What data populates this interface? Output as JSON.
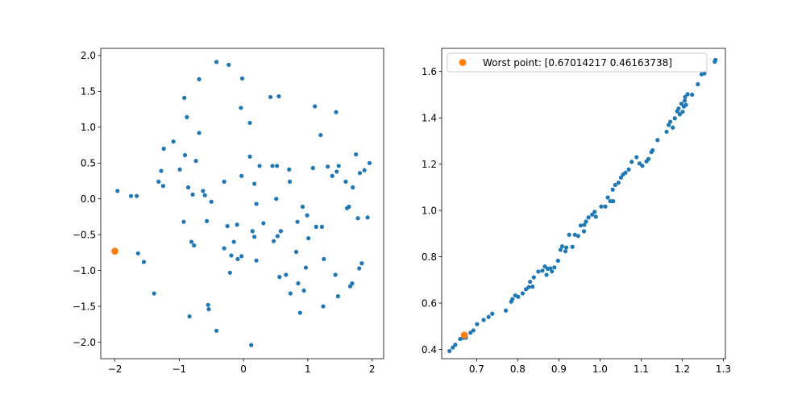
{
  "chart_data": [
    {
      "type": "scatter",
      "title": "",
      "xlabel": "",
      "ylabel": "",
      "xlim": [
        -2.22,
        2.18
      ],
      "ylim": [
        -2.23,
        2.1
      ],
      "xticks": [
        -2,
        -1,
        0,
        1,
        2
      ],
      "xtick_labels": [
        "−2",
        "−1",
        "0",
        "1",
        "2"
      ],
      "yticks": [
        -2.0,
        -1.5,
        -1.0,
        -0.5,
        0.0,
        0.5,
        1.0,
        1.5,
        2.0
      ],
      "ytick_labels": [
        "−2.0",
        "−1.5",
        "−1.0",
        "−0.5",
        "0.0",
        "0.5",
        "1.0",
        "1.5",
        "2.0"
      ],
      "grid": false,
      "series": [
        {
          "color": "#1f77b4",
          "marker_size": "small",
          "points": [
            [
              -1.96,
              0.11
            ],
            [
              -1.75,
              0.04
            ],
            [
              -1.66,
              0.04
            ],
            [
              -1.64,
              -0.76
            ],
            [
              -1.55,
              -0.88
            ],
            [
              -1.39,
              -1.32
            ],
            [
              -1.32,
              0.24
            ],
            [
              -1.28,
              0.39
            ],
            [
              -1.25,
              0.18
            ],
            [
              -1.24,
              0.7
            ],
            [
              -1.09,
              0.8
            ],
            [
              -0.99,
              0.41
            ],
            [
              -0.93,
              -0.32
            ],
            [
              -0.92,
              1.41
            ],
            [
              -0.91,
              0.61
            ],
            [
              -0.88,
              1.14
            ],
            [
              -0.86,
              0.16
            ],
            [
              -0.84,
              -1.64
            ],
            [
              -0.81,
              -0.6
            ],
            [
              -0.79,
              0.06
            ],
            [
              -0.77,
              -0.65
            ],
            [
              -0.74,
              0.53
            ],
            [
              -0.69,
              0.92
            ],
            [
              -0.69,
              1.67
            ],
            [
              -0.63,
              0.11
            ],
            [
              -0.6,
              0.05
            ],
            [
              -0.57,
              -0.31
            ],
            [
              -0.55,
              -1.48
            ],
            [
              -0.54,
              -1.54
            ],
            [
              -0.5,
              -0.04
            ],
            [
              -0.42,
              1.91
            ],
            [
              -0.42,
              -1.84
            ],
            [
              -0.3,
              0.24
            ],
            [
              -0.3,
              -0.69
            ],
            [
              -0.25,
              -0.38
            ],
            [
              -0.23,
              1.87
            ],
            [
              -0.21,
              -1.03
            ],
            [
              -0.19,
              -0.79
            ],
            [
              -0.15,
              -0.6
            ],
            [
              -0.1,
              -0.36
            ],
            [
              -0.09,
              -0.84
            ],
            [
              -0.04,
              1.27
            ],
            [
              -0.03,
              0.32
            ],
            [
              -0.03,
              -0.8
            ],
            [
              -0.02,
              1.68
            ],
            [
              0.1,
              0.59
            ],
            [
              0.1,
              1.06
            ],
            [
              0.12,
              -2.04
            ],
            [
              0.14,
              -0.45
            ],
            [
              0.17,
              0.21
            ],
            [
              0.17,
              -0.53
            ],
            [
              0.2,
              -0.07
            ],
            [
              0.2,
              -0.86
            ],
            [
              0.25,
              0.46
            ],
            [
              0.31,
              -0.34
            ],
            [
              0.42,
              1.42
            ],
            [
              0.45,
              0.46
            ],
            [
              0.47,
              -0.59
            ],
            [
              0.51,
              0.0
            ],
            [
              0.52,
              0.46
            ],
            [
              0.53,
              -0.52
            ],
            [
              0.55,
              1.43
            ],
            [
              0.56,
              -1.09
            ],
            [
              0.58,
              -0.45
            ],
            [
              0.66,
              -1.06
            ],
            [
              0.71,
              0.41
            ],
            [
              0.72,
              0.24
            ],
            [
              0.73,
              -1.32
            ],
            [
              0.82,
              -0.74
            ],
            [
              0.84,
              -0.32
            ],
            [
              0.85,
              -1.18
            ],
            [
              0.88,
              -1.59
            ],
            [
              0.92,
              -0.11
            ],
            [
              0.94,
              -1.28
            ],
            [
              0.97,
              -0.96
            ],
            [
              0.99,
              -0.23
            ],
            [
              1.01,
              -0.55
            ],
            [
              1.08,
              0.43
            ],
            [
              1.11,
              1.29
            ],
            [
              1.13,
              -0.39
            ],
            [
              1.2,
              0.89
            ],
            [
              1.22,
              -0.39
            ],
            [
              1.24,
              -1.5
            ],
            [
              1.25,
              -0.84
            ],
            [
              1.31,
              0.45
            ],
            [
              1.38,
              0.32
            ],
            [
              1.43,
              -1.06
            ],
            [
              1.44,
              1.21
            ],
            [
              1.45,
              0.38
            ],
            [
              1.47,
              -1.36
            ],
            [
              1.48,
              0.46
            ],
            [
              1.59,
              0.24
            ],
            [
              1.61,
              -0.13
            ],
            [
              1.64,
              -0.11
            ],
            [
              1.66,
              -1.22
            ],
            [
              1.69,
              -1.18
            ],
            [
              1.7,
              0.16
            ],
            [
              1.75,
              0.62
            ],
            [
              1.78,
              -0.27
            ],
            [
              1.8,
              -0.97
            ],
            [
              1.81,
              0.36
            ],
            [
              1.84,
              -0.9
            ],
            [
              1.88,
              0.4
            ],
            [
              1.93,
              -0.26
            ],
            [
              1.96,
              0.5
            ]
          ]
        },
        {
          "color": "#ff7f0e",
          "marker_size": "large",
          "points": [
            [
              -2.0,
              -0.73
            ]
          ]
        }
      ]
    },
    {
      "type": "scatter",
      "title": "",
      "xlabel": "",
      "ylabel": "",
      "xlim": [
        0.615,
        1.305
      ],
      "ylim": [
        0.36,
        1.7
      ],
      "xticks": [
        0.7,
        0.8,
        0.9,
        1.0,
        1.1,
        1.2,
        1.3
      ],
      "xtick_labels": [
        "0.7",
        "0.8",
        "0.9",
        "1.0",
        "1.1",
        "1.2",
        "1.3"
      ],
      "yticks": [
        0.4,
        0.6,
        0.8,
        1.0,
        1.2,
        1.4,
        1.6
      ],
      "ytick_labels": [
        "0.4",
        "0.6",
        "0.8",
        "1.0",
        "1.2",
        "1.4",
        "1.6"
      ],
      "grid": false,
      "legend": {
        "position": "top-left",
        "entries": [
          "Worst point: [0.67014217 0.46163738]"
        ]
      },
      "series": [
        {
          "color": "#1f77b4",
          "marker_size": "small",
          "points": [
            [
              0.634,
              0.393
            ],
            [
              0.642,
              0.408
            ],
            [
              0.648,
              0.42
            ],
            [
              0.66,
              0.445
            ],
            [
              0.667,
              0.45
            ],
            [
              0.674,
              0.451
            ],
            [
              0.685,
              0.472
            ],
            [
              0.692,
              0.482
            ],
            [
              0.701,
              0.509
            ],
            [
              0.717,
              0.527
            ],
            [
              0.729,
              0.54
            ],
            [
              0.738,
              0.554
            ],
            [
              0.771,
              0.568
            ],
            [
              0.784,
              0.606
            ],
            [
              0.787,
              0.617
            ],
            [
              0.794,
              0.633
            ],
            [
              0.801,
              0.627
            ],
            [
              0.812,
              0.642
            ],
            [
              0.82,
              0.66
            ],
            [
              0.827,
              0.669
            ],
            [
              0.83,
              0.692
            ],
            [
              0.836,
              0.671
            ],
            [
              0.839,
              0.711
            ],
            [
              0.85,
              0.736
            ],
            [
              0.86,
              0.74
            ],
            [
              0.866,
              0.758
            ],
            [
              0.87,
              0.722
            ],
            [
              0.873,
              0.748
            ],
            [
              0.879,
              0.75
            ],
            [
              0.883,
              0.737
            ],
            [
              0.889,
              0.754
            ],
            [
              0.898,
              0.783
            ],
            [
              0.904,
              0.83
            ],
            [
              0.908,
              0.845
            ],
            [
              0.916,
              0.824
            ],
            [
              0.918,
              0.84
            ],
            [
              0.925,
              0.895
            ],
            [
              0.933,
              0.843
            ],
            [
              0.939,
              0.895
            ],
            [
              0.947,
              0.89
            ],
            [
              0.953,
              0.935
            ],
            [
              0.961,
              0.91
            ],
            [
              0.962,
              0.938
            ],
            [
              0.966,
              0.952
            ],
            [
              0.972,
              0.97
            ],
            [
              0.981,
              0.982
            ],
            [
              0.987,
              0.994
            ],
            [
              0.99,
              0.973
            ],
            [
              1.003,
              1.017
            ],
            [
              1.013,
              1.017
            ],
            [
              1.019,
              1.056
            ],
            [
              1.025,
              1.04
            ],
            [
              1.031,
              1.09
            ],
            [
              1.032,
              1.04
            ],
            [
              1.037,
              1.11
            ],
            [
              1.045,
              1.12
            ],
            [
              1.051,
              1.142
            ],
            [
              1.056,
              1.155
            ],
            [
              1.062,
              1.163
            ],
            [
              1.07,
              1.177
            ],
            [
              1.077,
              1.21
            ],
            [
              1.089,
              1.23
            ],
            [
              1.096,
              1.203
            ],
            [
              1.103,
              1.193
            ],
            [
              1.113,
              1.212
            ],
            [
              1.118,
              1.222
            ],
            [
              1.125,
              1.252
            ],
            [
              1.128,
              1.26
            ],
            [
              1.14,
              1.304
            ],
            [
              1.162,
              1.34
            ],
            [
              1.167,
              1.369
            ],
            [
              1.171,
              1.383
            ],
            [
              1.177,
              1.358
            ],
            [
              1.182,
              1.398
            ],
            [
              1.188,
              1.428
            ],
            [
              1.191,
              1.44
            ],
            [
              1.194,
              1.415
            ],
            [
              1.198,
              1.461
            ],
            [
              1.201,
              1.426
            ],
            [
              1.204,
              1.449
            ],
            [
              1.206,
              1.474
            ],
            [
              1.207,
              1.49
            ],
            [
              1.209,
              1.456
            ],
            [
              1.213,
              1.502
            ],
            [
              1.224,
              1.5
            ],
            [
              1.238,
              1.545
            ],
            [
              1.247,
              1.588
            ],
            [
              1.254,
              1.592
            ],
            [
              1.279,
              1.642
            ],
            [
              1.281,
              1.65
            ]
          ]
        },
        {
          "color": "#ff7f0e",
          "marker_size": "large",
          "points": [
            [
              0.67014217,
              0.46163738
            ]
          ]
        }
      ]
    }
  ]
}
